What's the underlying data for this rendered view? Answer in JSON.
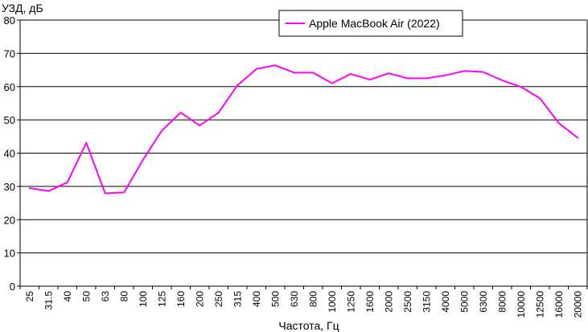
{
  "chart_data": {
    "type": "line",
    "title": "",
    "ylabel": "УЗД, дБ",
    "xlabel": "Частота, Гц",
    "ylim": [
      0,
      80
    ],
    "yticks": [
      0,
      10,
      20,
      30,
      40,
      50,
      60,
      70,
      80
    ],
    "grid": "horizontal",
    "legend_position": "top-center",
    "categories": [
      "25",
      "31.5",
      "40",
      "50",
      "63",
      "80",
      "100",
      "125",
      "160",
      "200",
      "250",
      "315",
      "400",
      "500",
      "630",
      "800",
      "1000",
      "1250",
      "1600",
      "2000",
      "2500",
      "3150",
      "4000",
      "5000",
      "6300",
      "8000",
      "10000",
      "12500",
      "16000",
      "20000"
    ],
    "series": [
      {
        "name": "Apple MacBook Air (2022)",
        "color": "#ff00ff",
        "values": [
          29.5,
          28.6,
          31.2,
          43.1,
          27.9,
          28.2,
          38.0,
          46.8,
          52.2,
          48.3,
          52.2,
          60.4,
          65.3,
          66.4,
          64.2,
          64.2,
          61.0,
          63.8,
          62.1,
          64.0,
          62.5,
          62.5,
          63.4,
          64.7,
          64.4,
          61.9,
          59.9,
          56.5,
          49.0,
          44.6
        ]
      }
    ]
  }
}
